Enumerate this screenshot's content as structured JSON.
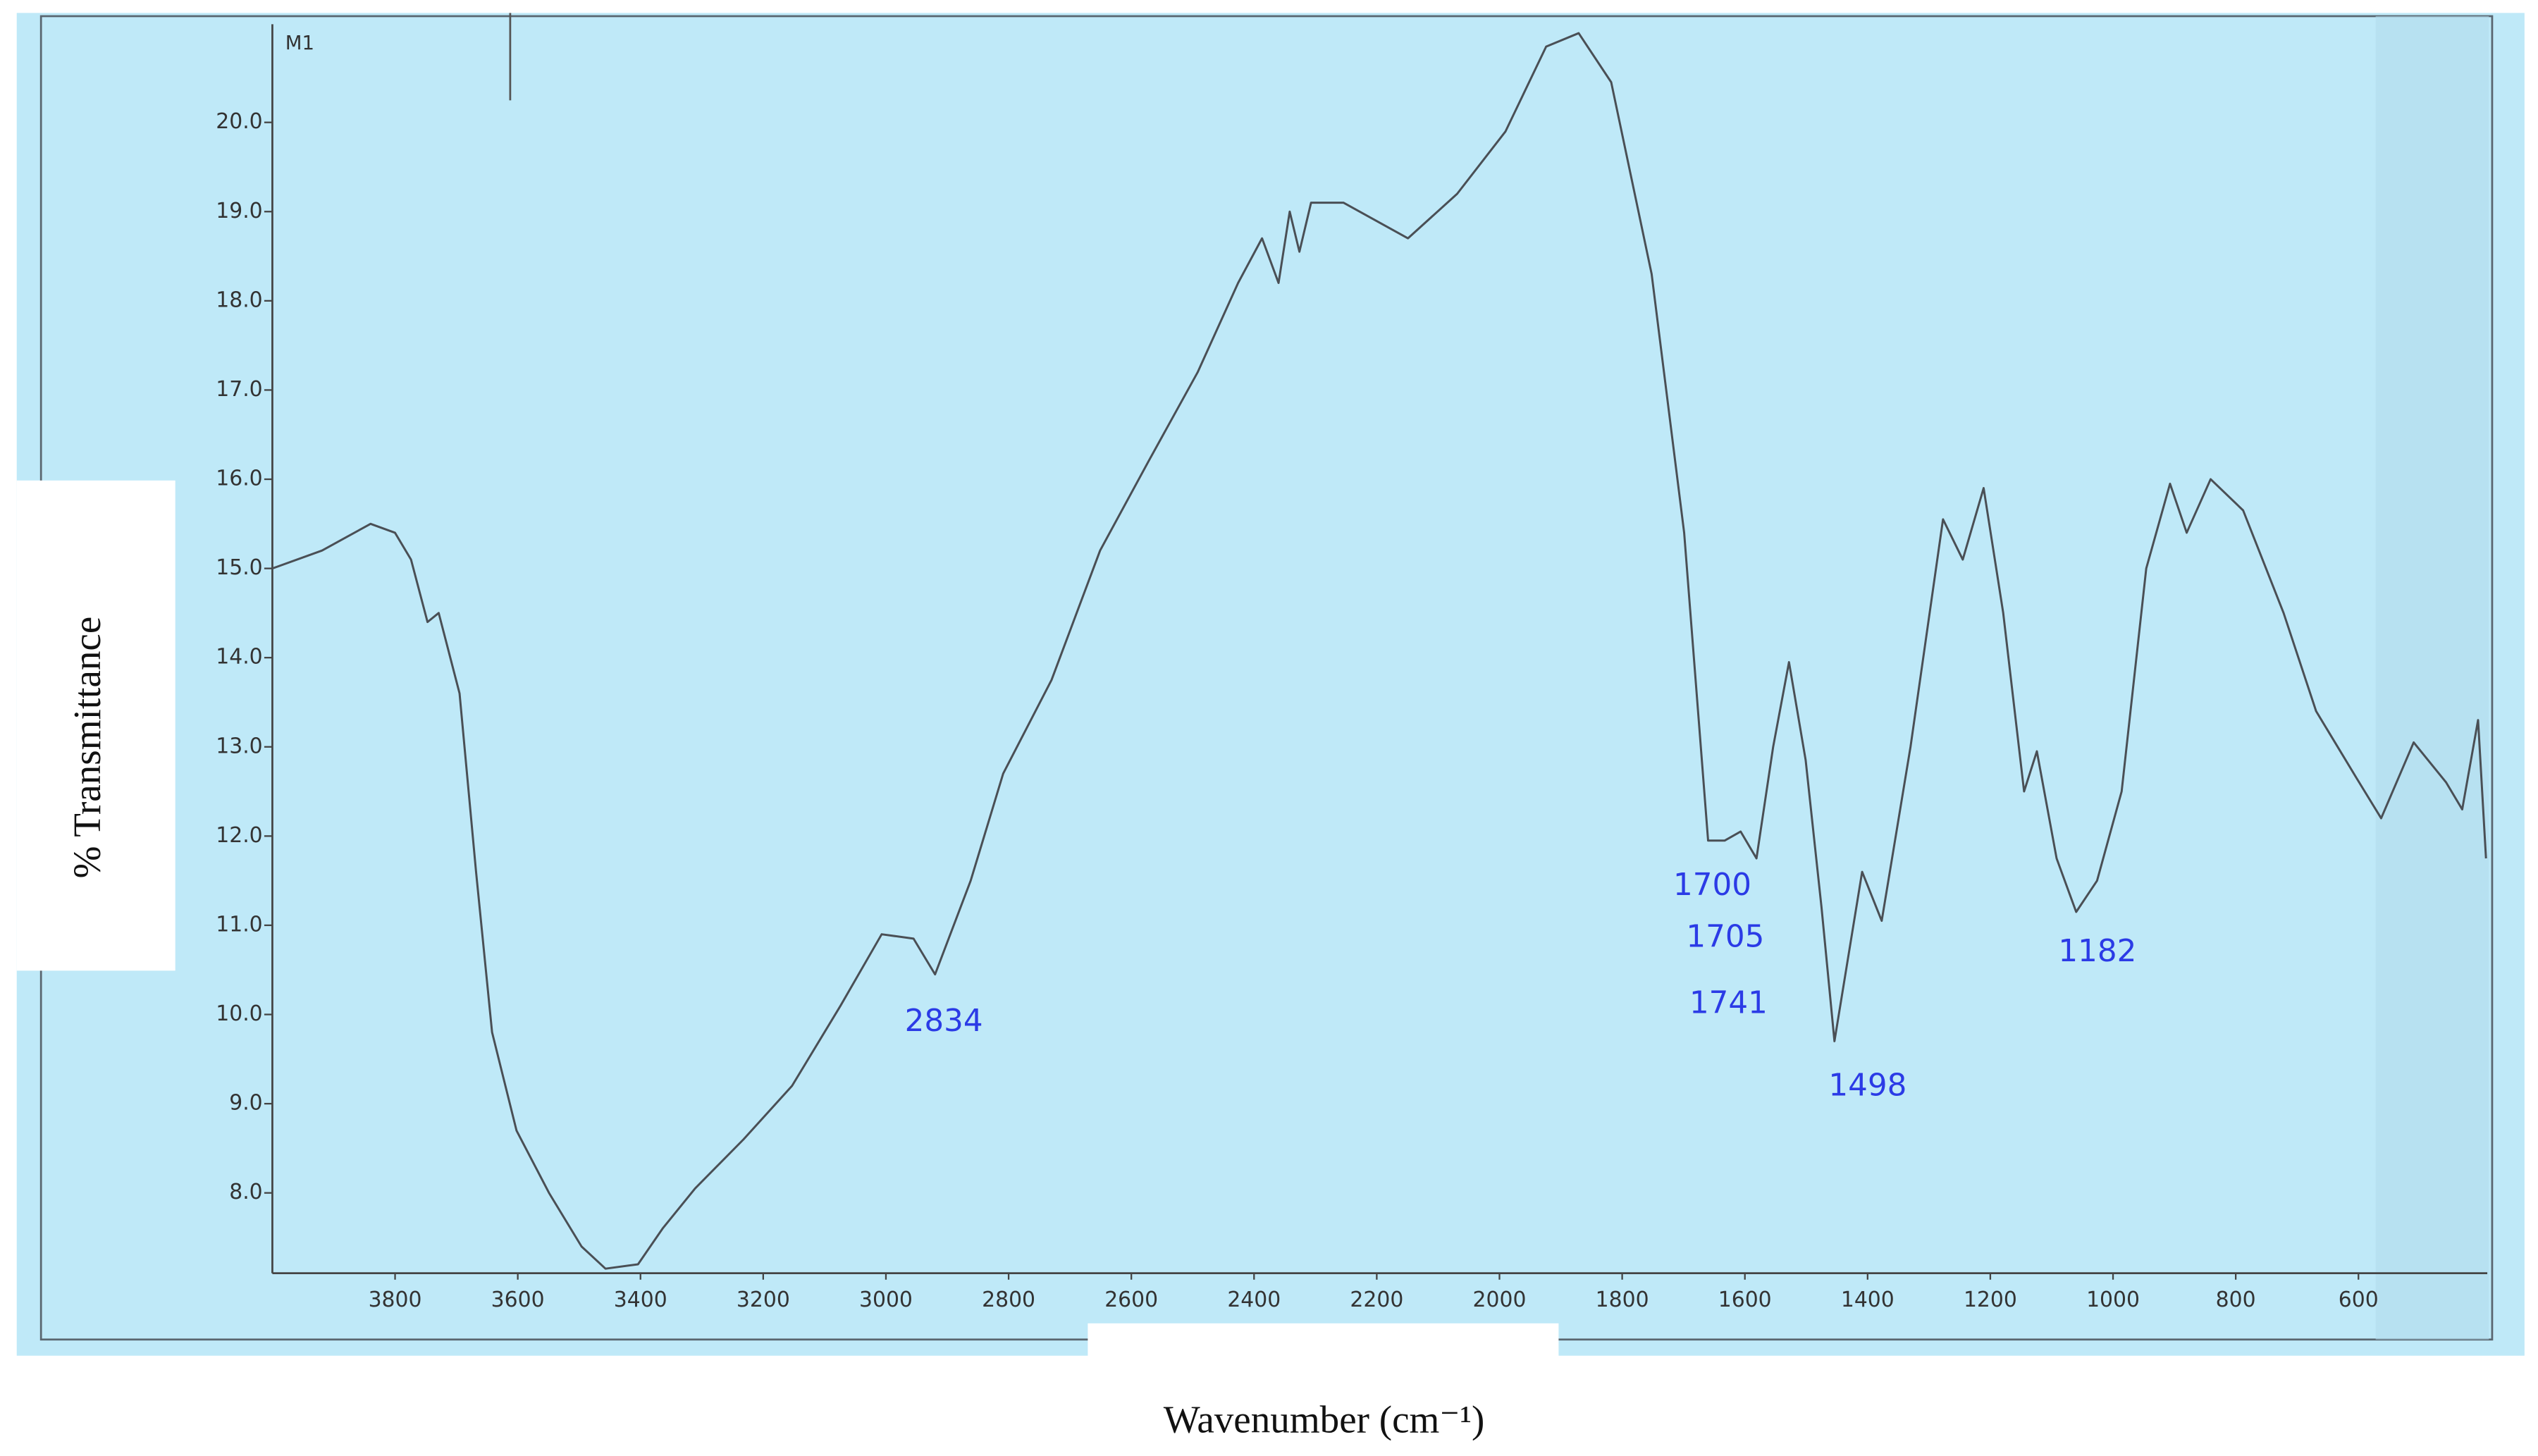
{
  "chart_data": {
    "type": "line",
    "panel_label": "M1",
    "x_label": "Wavenumber (cm⁻¹)",
    "y_label": "% Transmittance",
    "xlim": [
      4000,
      390
    ],
    "ylim": [
      7.1,
      21.1
    ],
    "xticks": [
      3800,
      3600,
      3400,
      3200,
      3000,
      2800,
      2600,
      2400,
      2200,
      2000,
      1800,
      1600,
      1400,
      1200,
      1000,
      800,
      600
    ],
    "yticks": [
      {
        "value": 8,
        "label": "8.0"
      },
      {
        "value": 9,
        "label": "9.0"
      },
      {
        "value": 10,
        "label": "10.0"
      },
      {
        "value": 11,
        "label": "11.0"
      },
      {
        "value": 12,
        "label": "12.0"
      },
      {
        "value": 13,
        "label": "13.0"
      },
      {
        "value": 14,
        "label": "14.0"
      },
      {
        "value": 15,
        "label": "15.0"
      },
      {
        "value": 16,
        "label": "16.0"
      },
      {
        "value": 17,
        "label": "17.0"
      },
      {
        "value": 18,
        "label": "18.0"
      },
      {
        "value": 19,
        "label": "19.0"
      },
      {
        "value": 20,
        "label": "20.0"
      }
    ],
    "color": "#4a4f55",
    "annotation_color": "#2b3be6",
    "annotations": [
      "2834",
      "1700",
      "1705",
      "1741",
      "1498",
      "1182"
    ],
    "x": [
      4000,
      3919,
      3840,
      3800,
      3774,
      3747,
      3729,
      3695,
      3668,
      3642,
      3602,
      3549,
      3496,
      3457,
      3404,
      3364,
      3311,
      3232,
      3153,
      3074,
      3007,
      2955,
      2920,
      2862,
      2809,
      2730,
      2651,
      2572,
      2492,
      2426,
      2387,
      2360,
      2342,
      2326,
      2307,
      2254,
      2149,
      2069,
      1990,
      1924,
      1871,
      1818,
      1752,
      1699,
      1660,
      1633,
      1607,
      1581,
      1554,
      1528,
      1501,
      1475,
      1454,
      1435,
      1409,
      1377,
      1330,
      1277,
      1245,
      1211,
      1179,
      1145,
      1124,
      1092,
      1060,
      1026,
      986,
      946,
      907,
      880,
      841,
      788,
      722,
      669,
      603,
      563,
      510,
      457,
      431,
      405,
      392
    ],
    "values": [
      15.0,
      15.2,
      15.5,
      15.4,
      15.1,
      14.4,
      14.5,
      13.6,
      11.6,
      9.8,
      8.7,
      8.0,
      7.4,
      7.15,
      7.2,
      7.6,
      8.05,
      8.6,
      9.2,
      10.1,
      10.9,
      10.85,
      10.45,
      11.5,
      12.7,
      13.75,
      15.2,
      16.2,
      17.2,
      18.2,
      18.7,
      18.2,
      19.0,
      18.55,
      19.1,
      19.1,
      18.7,
      19.2,
      19.9,
      20.85,
      21.0,
      20.45,
      18.3,
      15.4,
      11.95,
      11.95,
      12.05,
      11.75,
      13.0,
      13.95,
      12.85,
      11.2,
      9.7,
      10.5,
      11.6,
      11.05,
      13.0,
      15.55,
      15.1,
      15.9,
      14.5,
      12.5,
      12.95,
      11.75,
      11.15,
      11.5,
      12.5,
      15.0,
      15.95,
      15.4,
      16.0,
      15.65,
      14.5,
      13.4,
      12.65,
      12.2,
      13.05,
      12.6,
      12.3,
      13.3,
      11.75
    ]
  }
}
